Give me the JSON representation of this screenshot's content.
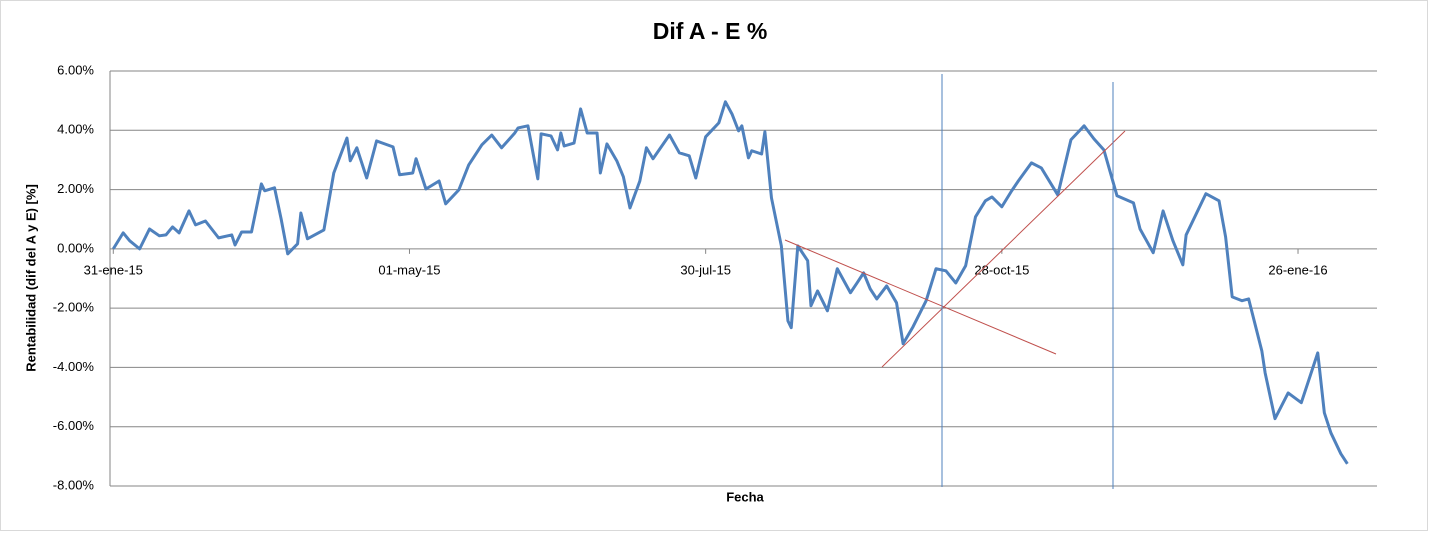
{
  "chart_data": {
    "type": "line",
    "title": "Dif A - E %",
    "xlabel": "Fecha",
    "ylabel": "Rentabilidad (dif del A y E) [%]",
    "xlim": [
      "2015-01-30",
      "2016-02-19"
    ],
    "xticks": [
      {
        "value": "2015-01-31",
        "label": "31-ene-15"
      },
      {
        "value": "2015-05-01",
        "label": "01-may-15"
      },
      {
        "value": "2015-07-30",
        "label": "30-jul-15"
      },
      {
        "value": "2015-10-28",
        "label": "28-oct-15"
      },
      {
        "value": "2016-01-26",
        "label": "26-ene-16"
      }
    ],
    "ylim": [
      -8,
      6
    ],
    "yticks": [
      {
        "value": 6,
        "label": "6.00%"
      },
      {
        "value": 4,
        "label": "4.00%"
      },
      {
        "value": 2,
        "label": "2.00%"
      },
      {
        "value": 0,
        "label": "0.00%"
      },
      {
        "value": -2,
        "label": "-2.00%"
      },
      {
        "value": -4,
        "label": "-4.00%"
      },
      {
        "value": -6,
        "label": "-6.00%"
      },
      {
        "value": -8,
        "label": "-8.00%"
      }
    ],
    "grid": true,
    "x": [
      "2015-01-31",
      "2015-02-03",
      "2015-02-05",
      "2015-02-08",
      "2015-02-11",
      "2015-02-14",
      "2015-02-16",
      "2015-02-18",
      "2015-02-20",
      "2015-02-23",
      "2015-02-25",
      "2015-02-28",
      "2015-03-04",
      "2015-03-08",
      "2015-03-09",
      "2015-03-11",
      "2015-03-14",
      "2015-03-17",
      "2015-03-18",
      "2015-03-21",
      "2015-03-23",
      "2015-03-25",
      "2015-03-28",
      "2015-03-29",
      "2015-03-31",
      "2015-04-05",
      "2015-04-08",
      "2015-04-12",
      "2015-04-13",
      "2015-04-15",
      "2015-04-18",
      "2015-04-21",
      "2015-04-26",
      "2015-04-28",
      "2015-05-02",
      "2015-05-03",
      "2015-05-06",
      "2015-05-10",
      "2015-05-12",
      "2015-05-16",
      "2015-05-19",
      "2015-05-23",
      "2015-05-26",
      "2015-05-29",
      "2015-06-02",
      "2015-06-03",
      "2015-06-06",
      "2015-06-09",
      "2015-06-10",
      "2015-06-13",
      "2015-06-15",
      "2015-06-16",
      "2015-06-17",
      "2015-06-20",
      "2015-06-22",
      "2015-06-24",
      "2015-06-27",
      "2015-06-28",
      "2015-06-30",
      "2015-07-03",
      "2015-07-05",
      "2015-07-07",
      "2015-07-10",
      "2015-07-12",
      "2015-07-14",
      "2015-07-19",
      "2015-07-22",
      "2015-07-25",
      "2015-07-27",
      "2015-07-30",
      "2015-08-03",
      "2015-08-05",
      "2015-08-07",
      "2015-08-09",
      "2015-08-10",
      "2015-08-12",
      "2015-08-13",
      "2015-08-16",
      "2015-08-17",
      "2015-08-19",
      "2015-08-22",
      "2015-08-24",
      "2015-08-25",
      "2015-08-27",
      "2015-08-30",
      "2015-08-31",
      "2015-09-02",
      "2015-09-05",
      "2015-09-08",
      "2015-09-12",
      "2015-09-14",
      "2015-09-16",
      "2015-09-18",
      "2015-09-20",
      "2015-09-23",
      "2015-09-26",
      "2015-09-28",
      "2015-10-01",
      "2015-10-05",
      "2015-10-08",
      "2015-10-11",
      "2015-10-14",
      "2015-10-17",
      "2015-10-20",
      "2015-10-23",
      "2015-10-25",
      "2015-10-28",
      "2015-10-31",
      "2015-11-02",
      "2015-11-06",
      "2015-11-09",
      "2015-11-14",
      "2015-11-18",
      "2015-11-22",
      "2015-11-25",
      "2015-11-28",
      "2015-12-02",
      "2015-12-07",
      "2015-12-09",
      "2015-12-13",
      "2015-12-16",
      "2015-12-19",
      "2015-12-22",
      "2015-12-23",
      "2015-12-29",
      "2016-01-02",
      "2016-01-04",
      "2016-01-06",
      "2016-01-09",
      "2016-01-11",
      "2016-01-15",
      "2016-01-16",
      "2016-01-19",
      "2016-01-23",
      "2016-01-27",
      "2016-02-01",
      "2016-02-03",
      "2016-02-05",
      "2016-02-08",
      "2016-02-10"
    ],
    "series": [
      {
        "name": "Dif A - E %",
        "color": "#4f81bd",
        "values": [
          0.0,
          0.54,
          0.27,
          0.0,
          0.67,
          0.44,
          0.47,
          0.74,
          0.54,
          1.28,
          0.81,
          0.94,
          0.37,
          0.47,
          0.13,
          0.57,
          0.57,
          2.19,
          1.96,
          2.06,
          1.01,
          -0.17,
          0.17,
          1.21,
          0.34,
          0.64,
          2.56,
          3.74,
          2.97,
          3.41,
          2.39,
          3.64,
          3.44,
          2.5,
          2.56,
          3.04,
          2.02,
          2.29,
          1.52,
          1.99,
          2.83,
          3.51,
          3.84,
          3.41,
          3.91,
          4.08,
          4.15,
          2.36,
          3.88,
          3.81,
          3.34,
          3.91,
          3.47,
          3.57,
          4.72,
          3.91,
          3.91,
          2.56,
          3.54,
          2.97,
          2.43,
          1.38,
          2.29,
          3.41,
          3.04,
          3.84,
          3.24,
          3.14,
          2.39,
          3.78,
          4.25,
          4.96,
          4.55,
          3.98,
          4.15,
          3.07,
          3.31,
          3.2,
          3.95,
          1.72,
          0.1,
          -2.43,
          -2.66,
          0.1,
          -0.4,
          -1.92,
          -1.42,
          -2.09,
          -0.67,
          -1.48,
          -1.15,
          -0.81,
          -1.35,
          -1.69,
          -1.25,
          -1.82,
          -3.2,
          -2.63,
          -1.75,
          -0.67,
          -0.74,
          -1.15,
          -0.57,
          1.08,
          1.62,
          1.75,
          1.42,
          1.96,
          2.29,
          2.9,
          2.73,
          1.82,
          3.68,
          4.15,
          3.71,
          3.34,
          1.79,
          1.55,
          0.67,
          -0.13,
          1.28,
          0.27,
          -0.54,
          0.47,
          1.86,
          1.62,
          0.4,
          -1.62,
          -1.75,
          -1.69,
          -3.44,
          -4.18,
          -5.73,
          -4.86,
          -5.19,
          -3.51,
          -5.53,
          -6.21,
          -6.91,
          -7.25
        ]
      }
    ]
  }
}
